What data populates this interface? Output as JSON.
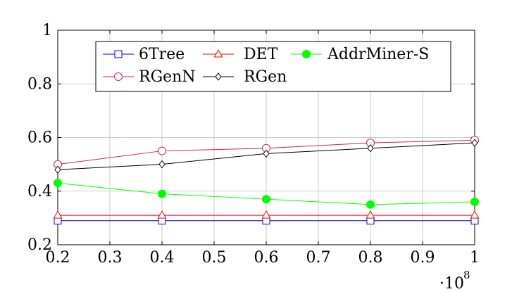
{
  "chart_data": {
    "type": "line",
    "x": [
      0.2,
      0.4,
      0.6,
      0.8,
      1.0
    ],
    "x_multiplier_label": "·10",
    "x_multiplier_exponent": "8",
    "xlim": [
      0.2,
      1.0
    ],
    "ylim": [
      0.2,
      1.0
    ],
    "xticks": [
      "0.2",
      "0.3",
      "0.4",
      "0.5",
      "0.6",
      "0.7",
      "0.8",
      "0.9",
      "1"
    ],
    "xtick_values": [
      0.2,
      0.3,
      0.4,
      0.5,
      0.6,
      0.7,
      0.8,
      0.9,
      1.0
    ],
    "yticks": [
      "0.2",
      "0.4",
      "0.6",
      "0.8",
      "1"
    ],
    "ytick_values": [
      0.2,
      0.4,
      0.6,
      0.8,
      1.0
    ],
    "grid": true,
    "legend_position": "top-center",
    "series": [
      {
        "name": "6Tree",
        "color": "#0000ff",
        "marker": "square-open",
        "values": [
          0.29,
          0.29,
          0.29,
          0.29,
          0.29
        ]
      },
      {
        "name": "DET",
        "color": "#ff0000",
        "marker": "triangle-open",
        "values": [
          0.31,
          0.31,
          0.31,
          0.31,
          0.31
        ]
      },
      {
        "name": "AddrMiner-S",
        "color": "#00ff00",
        "marker": "circle-filled",
        "values": [
          0.43,
          0.39,
          0.37,
          0.35,
          0.36
        ]
      },
      {
        "name": "RGenN",
        "color": "#c8245f",
        "marker": "circle-open",
        "values": [
          0.5,
          0.55,
          0.56,
          0.58,
          0.59
        ]
      },
      {
        "name": "RGen",
        "color": "#000000",
        "marker": "diamond-open",
        "values": [
          0.48,
          0.5,
          0.54,
          0.56,
          0.58
        ]
      }
    ]
  }
}
